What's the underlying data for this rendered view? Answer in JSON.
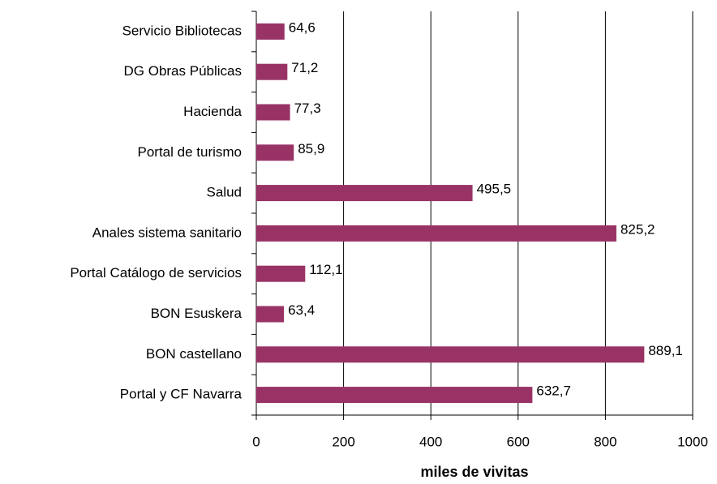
{
  "chart_data": {
    "type": "barh",
    "categories": [
      "Servicio Bibliotecas",
      "DG Obras Públicas",
      "Hacienda",
      "Portal de turismo",
      "Salud",
      "Anales sistema sanitario",
      "Portal Catálogo de servicios",
      "BON Esuskera",
      "BON castellano",
      "Portal y  CF Navarra"
    ],
    "values": [
      64.6,
      71.2,
      77.3,
      85.9,
      495.5,
      825.2,
      112.1,
      63.4,
      889.1,
      632.7
    ],
    "value_labels": [
      "64,6",
      "71,2",
      "77,3",
      "85,9",
      "495,5",
      "825,2",
      "112,1",
      "63,4",
      "889,1",
      "632,7"
    ],
    "color": "#993366",
    "xlim": [
      0,
      1000
    ],
    "xticks": [
      0,
      200,
      400,
      600,
      800,
      1000
    ],
    "xlabel": "miles de vivitas",
    "grid": true
  }
}
